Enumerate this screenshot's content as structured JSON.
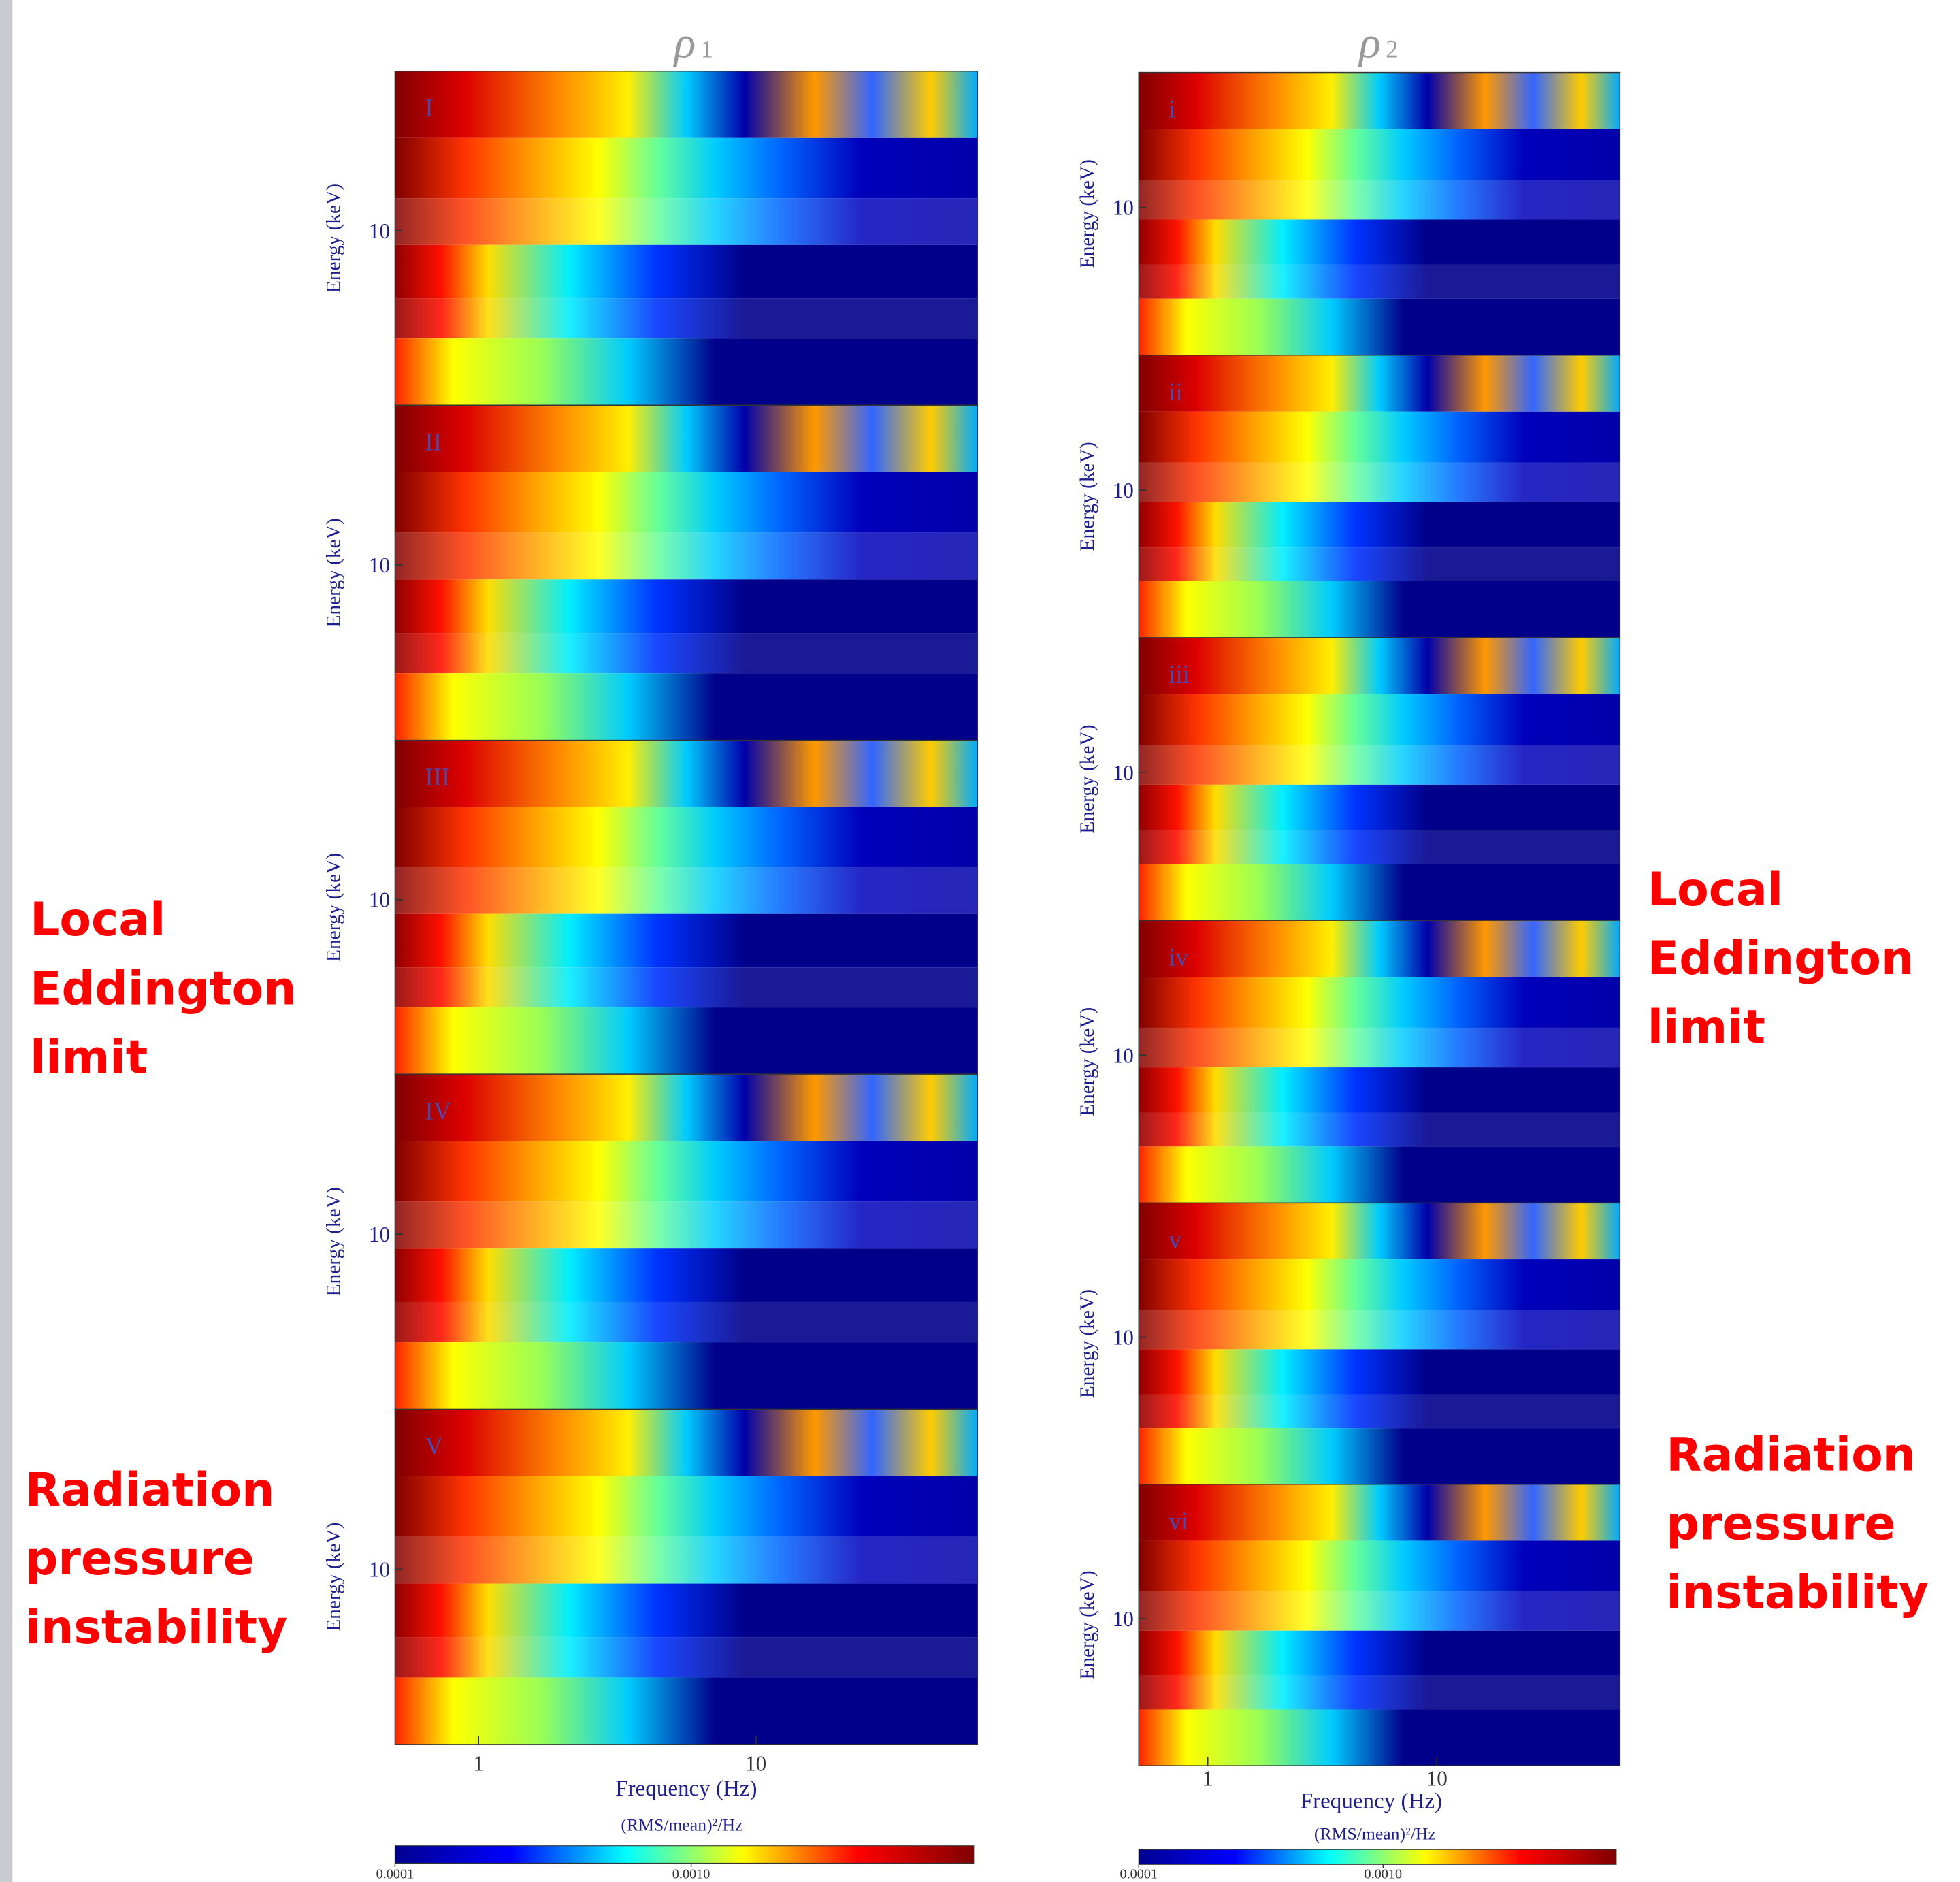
{
  "figures": [
    {
      "title": {
        "symbol": "ρ",
        "subscript": "1"
      },
      "panels": [
        {
          "label": "I"
        },
        {
          "label": "II"
        },
        {
          "label": "III"
        },
        {
          "label": "IV"
        },
        {
          "label": "V"
        }
      ],
      "y_label": "Energy (keV)",
      "ylim": [
        3,
        30
      ],
      "yticks": [
        10
      ],
      "x_label": "Frequency (Hz)",
      "xlim": [
        0.5,
        63
      ],
      "xticks": [
        1,
        10
      ],
      "log_scale": true,
      "colorbar": {
        "label": "(RMS/mean)²/Hz",
        "lim": [
          0.0001,
          0.009
        ],
        "ticks": [
          0.0001,
          {
            "value": 0.001,
            "label": "0.0010"
          }
        ]
      }
    },
    {
      "title": {
        "symbol": "ρ",
        "subscript": "2"
      },
      "panels": [
        {
          "label": "i"
        },
        {
          "label": "ii"
        },
        {
          "label": "iii"
        },
        {
          "label": "iv"
        },
        {
          "label": "v"
        },
        {
          "label": "vi"
        }
      ],
      "y_label": "Energy (keV)",
      "ylim": [
        3,
        30
      ],
      "yticks": [
        10
      ],
      "x_label": "Frequency (Hz)",
      "xlim": [
        0.5,
        63
      ],
      "xticks": [
        1,
        10
      ],
      "log_scale": true,
      "colorbar": {
        "label": "(RMS/mean)²/Hz",
        "lim": [
          0.0001,
          0.009
        ],
        "ticks": [
          0.0001,
          {
            "value": 0.001,
            "label": "0.0010"
          }
        ]
      }
    }
  ],
  "annotations": [
    {
      "lines": [
        "Local",
        "Eddington",
        "limit"
      ]
    },
    {
      "lines": [
        "Local",
        "Eddington",
        "limit"
      ]
    },
    {
      "lines": [
        "Radiation",
        "pressure",
        "instability"
      ]
    },
    {
      "lines": [
        "Radiation",
        "pressure",
        "instability"
      ]
    }
  ]
}
